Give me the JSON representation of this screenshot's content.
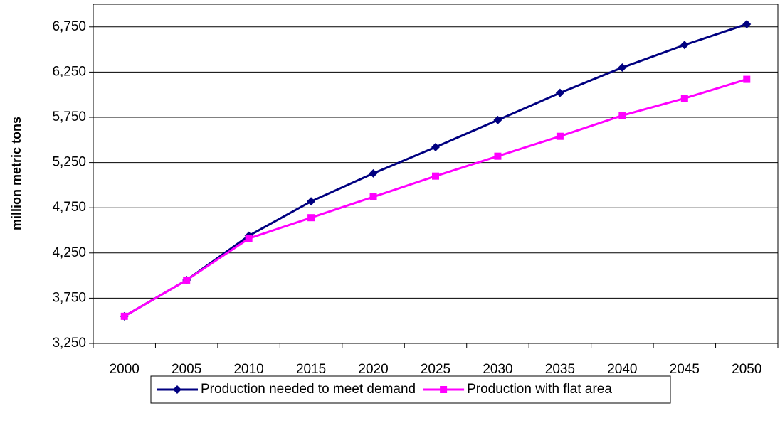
{
  "chart_data": {
    "type": "line",
    "y_label": "million metric tons",
    "categories": [
      "2000",
      "2005",
      "2010",
      "2015",
      "2020",
      "2025",
      "2030",
      "2035",
      "2040",
      "2045",
      "2050"
    ],
    "series": [
      {
        "name": "Production needed to meet demand",
        "color": "#000080",
        "marker": "diamond",
        "values": [
          3550,
          3950,
          4440,
          4820,
          5130,
          5420,
          5720,
          6020,
          6300,
          6550,
          6780
        ]
      },
      {
        "name": "Production with flat area",
        "color": "#ff00ff",
        "marker": "square",
        "values": [
          3550,
          3950,
          4410,
          4640,
          4870,
          5100,
          5320,
          5540,
          5770,
          5960,
          6170
        ]
      }
    ],
    "ylim": [
      3250,
      7000
    ],
    "yticks": [
      {
        "value": 3250,
        "label": "3,250"
      },
      {
        "value": 3750,
        "label": "3,750"
      },
      {
        "value": 4250,
        "label": "4,250"
      },
      {
        "value": 4750,
        "label": "4,750"
      },
      {
        "value": 5250,
        "label": "5,250"
      },
      {
        "value": 5750,
        "label": "5,750"
      },
      {
        "value": 6250,
        "label": "6,250"
      },
      {
        "value": 6750,
        "label": "6,750"
      }
    ],
    "grid": true,
    "legend": "bottom"
  }
}
